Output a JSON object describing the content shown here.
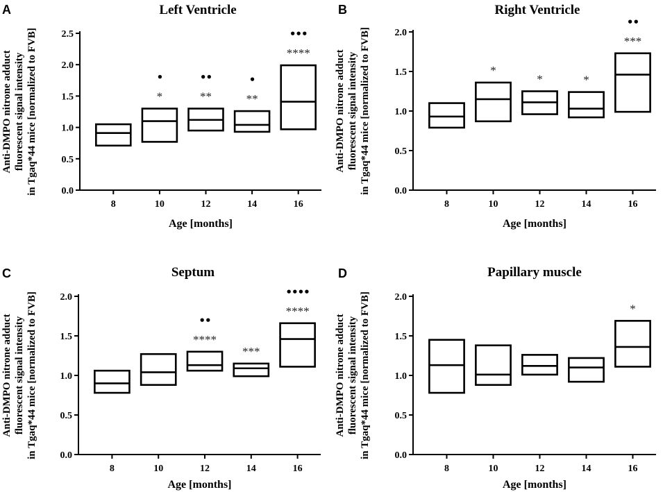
{
  "chart_data": [
    {
      "type": "box",
      "panel": "A",
      "title": "Left Ventricle",
      "xlabel": "Age [months]",
      "ylabel": [
        "Anti-DMPO nitrone adduct",
        "fluorescent signal intensity",
        "in Tgaq*44 mice [normalized to FVB]"
      ],
      "ylim": [
        0.0,
        2.5
      ],
      "yticks": [
        "0.0",
        "0.5",
        "1.0",
        "1.5",
        "2.0",
        "2.5"
      ],
      "categories": [
        "8",
        "10",
        "12",
        "14",
        "16"
      ],
      "boxes": [
        {
          "low": 0.71,
          "median": 0.91,
          "high": 1.05,
          "stars": "",
          "dots": ""
        },
        {
          "low": 0.77,
          "median": 1.1,
          "high": 1.3,
          "stars": "*",
          "dots": "•"
        },
        {
          "low": 0.95,
          "median": 1.12,
          "high": 1.3,
          "stars": "**",
          "dots": "••"
        },
        {
          "low": 0.93,
          "median": 1.04,
          "high": 1.26,
          "stars": "**",
          "dots": "•"
        },
        {
          "low": 0.97,
          "median": 1.41,
          "high": 1.99,
          "stars": "****",
          "dots": "•••"
        }
      ]
    },
    {
      "type": "box",
      "panel": "B",
      "title": "Right Ventricle",
      "xlabel": "Age [months]",
      "ylabel": [
        "Anti-DMPO nitrone adduct",
        "fluorescent signal intensity",
        "in Tgaq*44 mice [normalized to FVB]"
      ],
      "ylim": [
        0.0,
        2.0
      ],
      "yticks": [
        "0.0",
        "0.5",
        "1.0",
        "1.5",
        "2.0"
      ],
      "categories": [
        "8",
        "10",
        "12",
        "14",
        "16"
      ],
      "boxes": [
        {
          "low": 0.79,
          "median": 0.93,
          "high": 1.1,
          "stars": "",
          "dots": ""
        },
        {
          "low": 0.87,
          "median": 1.15,
          "high": 1.36,
          "stars": "*",
          "dots": ""
        },
        {
          "low": 0.96,
          "median": 1.11,
          "high": 1.25,
          "stars": "*",
          "dots": ""
        },
        {
          "low": 0.92,
          "median": 1.03,
          "high": 1.24,
          "stars": "*",
          "dots": ""
        },
        {
          "low": 0.99,
          "median": 1.46,
          "high": 1.73,
          "stars": "***",
          "dots": "••"
        }
      ]
    },
    {
      "type": "box",
      "panel": "C",
      "title": "Septum",
      "xlabel": "Age [months]",
      "ylabel": [
        "Anti-DMPO nitrone adduct",
        "fluorescent signal intensity",
        "in Tgaq*44 mice [normalized to FVB]"
      ],
      "ylim": [
        0.0,
        2.0
      ],
      "yticks": [
        "0.0",
        "0.5",
        "1.0",
        "1.5",
        "2.0"
      ],
      "categories": [
        "8",
        "10",
        "12",
        "14",
        "16"
      ],
      "boxes": [
        {
          "low": 0.78,
          "median": 0.9,
          "high": 1.06,
          "stars": "",
          "dots": ""
        },
        {
          "low": 0.88,
          "median": 1.04,
          "high": 1.27,
          "stars": "",
          "dots": ""
        },
        {
          "low": 1.06,
          "median": 1.13,
          "high": 1.3,
          "stars": "****",
          "dots": "••"
        },
        {
          "low": 0.99,
          "median": 1.09,
          "high": 1.15,
          "stars": "***",
          "dots": ""
        },
        {
          "low": 1.11,
          "median": 1.46,
          "high": 1.66,
          "stars": "****",
          "dots": "••••"
        }
      ]
    },
    {
      "type": "box",
      "panel": "D",
      "title": "Papillary muscle",
      "xlabel": "Age [months]",
      "ylabel": [
        "Anti-DMPO nitrone adduct",
        "fluorescent signal intensity",
        "in Tgaq*44 mice [normalized to FVB]"
      ],
      "ylim": [
        0.0,
        2.0
      ],
      "yticks": [
        "0.0",
        "0.5",
        "1.0",
        "1.5",
        "2.0"
      ],
      "categories": [
        "8",
        "10",
        "12",
        "14",
        "16"
      ],
      "boxes": [
        {
          "low": 0.78,
          "median": 1.13,
          "high": 1.45,
          "stars": "",
          "dots": ""
        },
        {
          "low": 0.88,
          "median": 1.01,
          "high": 1.38,
          "stars": "",
          "dots": ""
        },
        {
          "low": 1.01,
          "median": 1.12,
          "high": 1.26,
          "stars": "",
          "dots": ""
        },
        {
          "low": 0.92,
          "median": 1.1,
          "high": 1.22,
          "stars": "",
          "dots": ""
        },
        {
          "low": 1.11,
          "median": 1.36,
          "high": 1.69,
          "stars": "*",
          "dots": ""
        }
      ]
    }
  ]
}
